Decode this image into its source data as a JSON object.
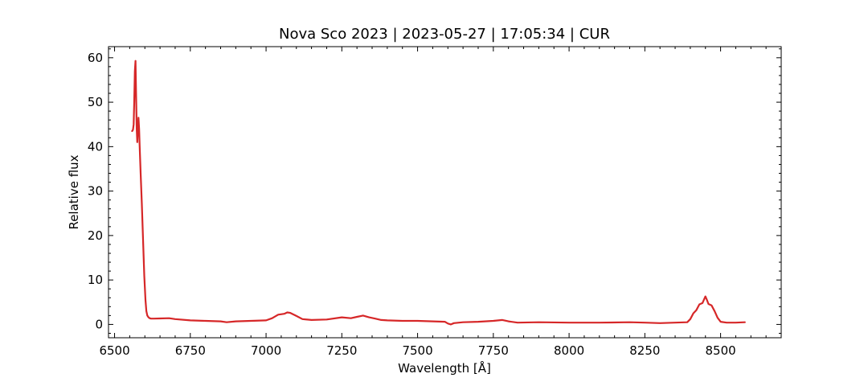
{
  "chart_data": {
    "type": "line",
    "title": "Nova Sco 2023 | 2023-05-27 | 17:05:34 | CUR",
    "xlabel": "Wavelength [Å]",
    "ylabel": "Relative flux",
    "xlim": [
      6480,
      8700
    ],
    "ylim": [
      -3,
      62.5
    ],
    "xticks": [
      6500,
      6750,
      7000,
      7250,
      7500,
      7750,
      8000,
      8250,
      8500
    ],
    "yticks": [
      0,
      10,
      20,
      30,
      40,
      50,
      60
    ],
    "xtick_labels": [
      "6500",
      "6750",
      "7000",
      "7250",
      "7500",
      "7750",
      "8000",
      "8250",
      "8500"
    ],
    "ytick_labels": [
      "0",
      "10",
      "20",
      "30",
      "40",
      "50",
      "60"
    ],
    "grid": false,
    "legend": "none",
    "series": [
      {
        "color": "#d62728",
        "x": [
          6558,
          6561,
          6563,
          6565,
          6567,
          6569,
          6571,
          6573,
          6575,
          6577,
          6579,
          6581,
          6583,
          6586,
          6590,
          6594,
          6598,
          6602,
          6605,
          6608,
          6612,
          6616,
          6620,
          6630,
          6650,
          6680,
          6700,
          6750,
          6800,
          6850,
          6870,
          6900,
          6950,
          7000,
          7020,
          7040,
          7060,
          7070,
          7080,
          7100,
          7120,
          7150,
          7200,
          7250,
          7280,
          7300,
          7320,
          7340,
          7360,
          7380,
          7400,
          7450,
          7500,
          7550,
          7590,
          7600,
          7610,
          7620,
          7650,
          7700,
          7750,
          7780,
          7800,
          7830,
          7900,
          8000,
          8100,
          8200,
          8250,
          8300,
          8350,
          8390,
          8400,
          8410,
          8420,
          8430,
          8440,
          8450,
          8455,
          8460,
          8470,
          8480,
          8490,
          8500,
          8520,
          8550,
          8580
        ],
        "y": [
          43.5,
          43.8,
          45.0,
          50.0,
          57.0,
          59.3,
          52.0,
          44.0,
          41.0,
          44.0,
          46.5,
          44.0,
          40.0,
          34.0,
          27.0,
          19.0,
          11.0,
          5.5,
          3.0,
          2.0,
          1.6,
          1.4,
          1.3,
          1.3,
          1.35,
          1.4,
          1.2,
          0.9,
          0.8,
          0.7,
          0.5,
          0.7,
          0.8,
          0.9,
          1.4,
          2.2,
          2.4,
          2.7,
          2.6,
          1.9,
          1.2,
          1.0,
          1.1,
          1.6,
          1.4,
          1.7,
          2.0,
          1.6,
          1.3,
          1.0,
          0.9,
          0.8,
          0.8,
          0.7,
          0.6,
          0.2,
          0.0,
          0.3,
          0.5,
          0.6,
          0.8,
          1.0,
          0.7,
          0.4,
          0.5,
          0.4,
          0.4,
          0.5,
          0.4,
          0.3,
          0.4,
          0.5,
          1.2,
          2.5,
          3.2,
          4.5,
          4.8,
          6.3,
          5.5,
          4.6,
          4.3,
          3.0,
          1.5,
          0.6,
          0.4,
          0.4,
          0.5
        ]
      }
    ]
  }
}
